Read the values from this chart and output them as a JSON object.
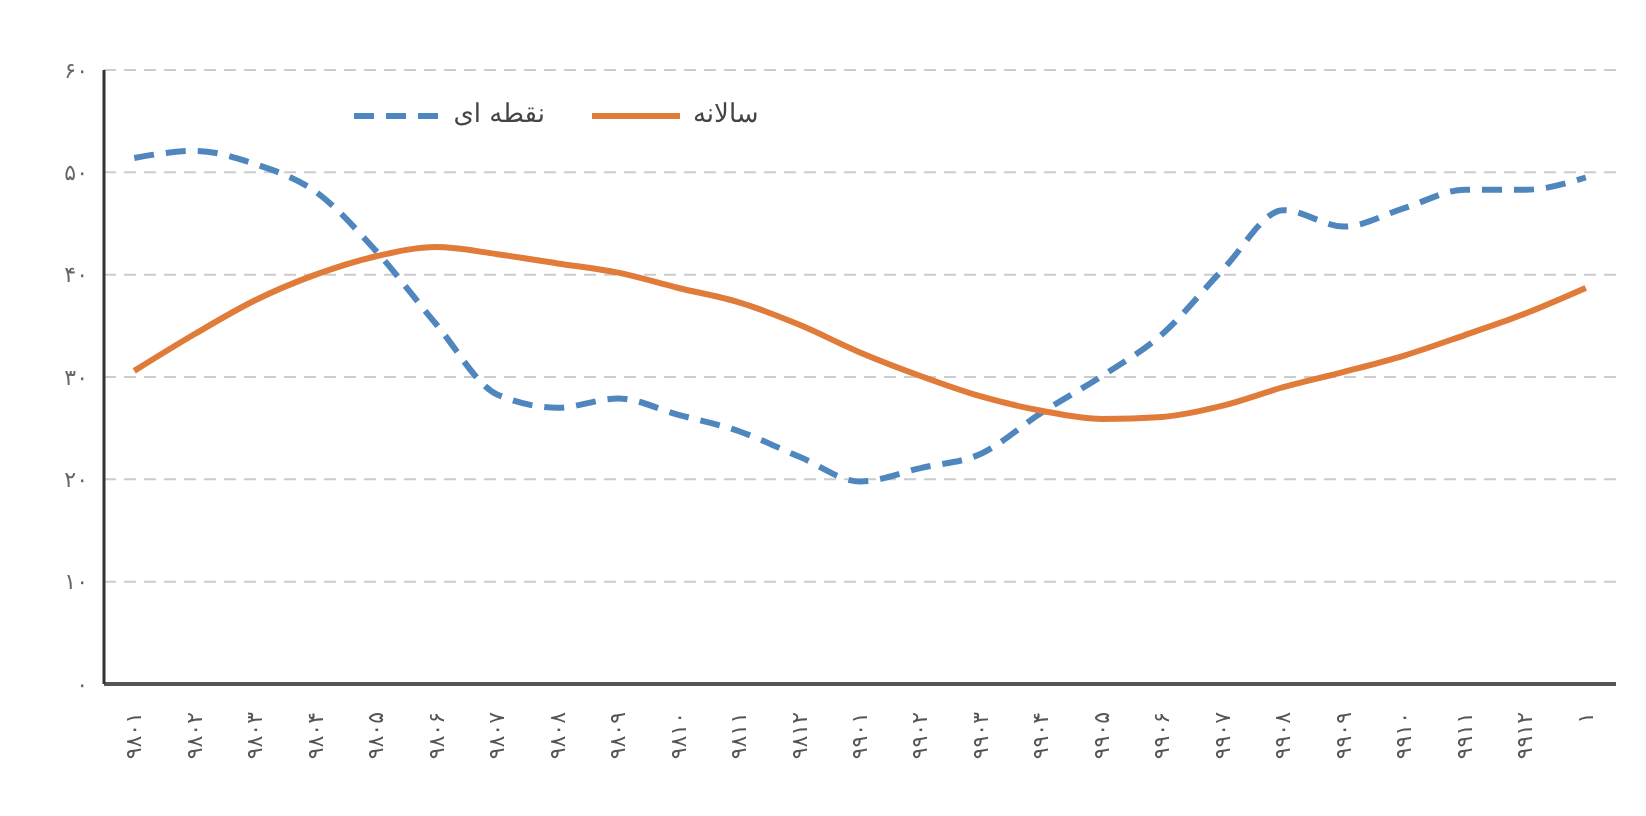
{
  "chart_data": {
    "type": "line",
    "categories": [
      "۹۸۰۱",
      "۹۸۰۲",
      "۹۸۰۳",
      "۹۸۰۴",
      "۹۸۰۵",
      "۹۸۰۶",
      "۹۸۰۷",
      "۹۸۰۸",
      "۹۸۰۹",
      "۹۸۱۰",
      "۹۸۱۱",
      "۹۸۱۲",
      "۹۹۰۱",
      "۹۹۰۲",
      "۹۹۰۳",
      "۹۹۰۴",
      "۹۹۰۵",
      "۹۹۰۶",
      "۹۹۰۷",
      "۹۹۰۸",
      "۹۹۰۹",
      "۹۹۱۰",
      "۹۹۱۱",
      "۹۹۱۲",
      "۱"
    ],
    "series": [
      {
        "name": "نقطه ای",
        "color": "#4f86bd",
        "line_style": "dashed",
        "values": [
          51.4,
          52.1,
          50.8,
          48.1,
          42.3,
          35.1,
          28.3,
          27.0,
          27.9,
          26.3,
          24.7,
          22.2,
          19.8,
          21.1,
          22.5,
          26.5,
          30.1,
          34.2,
          40.5,
          46.3,
          44.7,
          46.5,
          48.3,
          48.3,
          49.5
        ]
      },
      {
        "name": "سالانه",
        "color": "#e07b39",
        "line_style": "solid",
        "values": [
          30.6,
          34.2,
          37.5,
          40.0,
          41.8,
          42.7,
          42.0,
          41.1,
          40.2,
          38.7,
          37.3,
          35.1,
          32.4,
          30.1,
          28.1,
          26.7,
          25.9,
          26.1,
          27.2,
          29.0,
          30.5,
          32.1,
          34.1,
          36.2,
          38.7
        ]
      }
    ],
    "ylim": [
      0,
      60
    ],
    "yticks": [
      {
        "value": 0,
        "label": "۰"
      },
      {
        "value": 10,
        "label": "۱۰"
      },
      {
        "value": 20,
        "label": "۲۰"
      },
      {
        "value": 30,
        "label": "۳۰"
      },
      {
        "value": 40,
        "label": "۴۰"
      },
      {
        "value": 50,
        "label": "۵۰"
      },
      {
        "value": 60,
        "label": "۶۰"
      }
    ],
    "grid": "y",
    "legend": "top",
    "marker": "none"
  }
}
